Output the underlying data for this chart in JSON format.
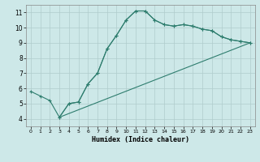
{
  "xlabel": "Humidex (Indice chaleur)",
  "ylabel": "",
  "xlim": [
    -0.5,
    23.5
  ],
  "ylim": [
    3.5,
    11.5
  ],
  "xticks": [
    0,
    1,
    2,
    3,
    4,
    5,
    6,
    7,
    8,
    9,
    10,
    11,
    12,
    13,
    14,
    15,
    16,
    17,
    18,
    19,
    20,
    21,
    22,
    23
  ],
  "yticks": [
    4,
    5,
    6,
    7,
    8,
    9,
    10,
    11
  ],
  "bg_color": "#cde8e8",
  "grid_color": "#b0cccc",
  "line_color": "#2e7d6e",
  "line1_x": [
    0,
    1,
    2,
    3,
    4,
    5,
    6,
    7,
    8,
    9,
    10,
    11,
    12,
    13,
    14,
    15,
    16,
    17,
    18,
    19,
    20,
    21,
    22,
    23
  ],
  "line1_y": [
    5.8,
    5.5,
    5.2,
    4.1,
    5.0,
    5.1,
    6.3,
    7.0,
    8.6,
    9.5,
    10.5,
    11.1,
    11.1,
    10.5,
    10.2,
    10.1,
    10.2,
    10.1,
    9.9,
    9.8,
    9.4,
    9.2,
    9.1,
    9.0
  ],
  "line2_x": [
    3,
    4,
    5,
    6,
    7,
    8,
    9,
    10,
    11,
    12,
    13,
    14,
    15,
    16,
    17,
    18,
    19,
    20,
    21,
    22,
    23
  ],
  "line2_y": [
    4.1,
    5.0,
    5.1,
    6.3,
    7.0,
    8.6,
    9.5,
    10.5,
    11.1,
    11.1,
    10.5,
    10.2,
    10.1,
    10.2,
    10.1,
    9.9,
    9.8,
    9.4,
    9.2,
    9.1,
    9.0
  ],
  "line3_x": [
    3,
    23
  ],
  "line3_y": [
    4.1,
    9.0
  ]
}
